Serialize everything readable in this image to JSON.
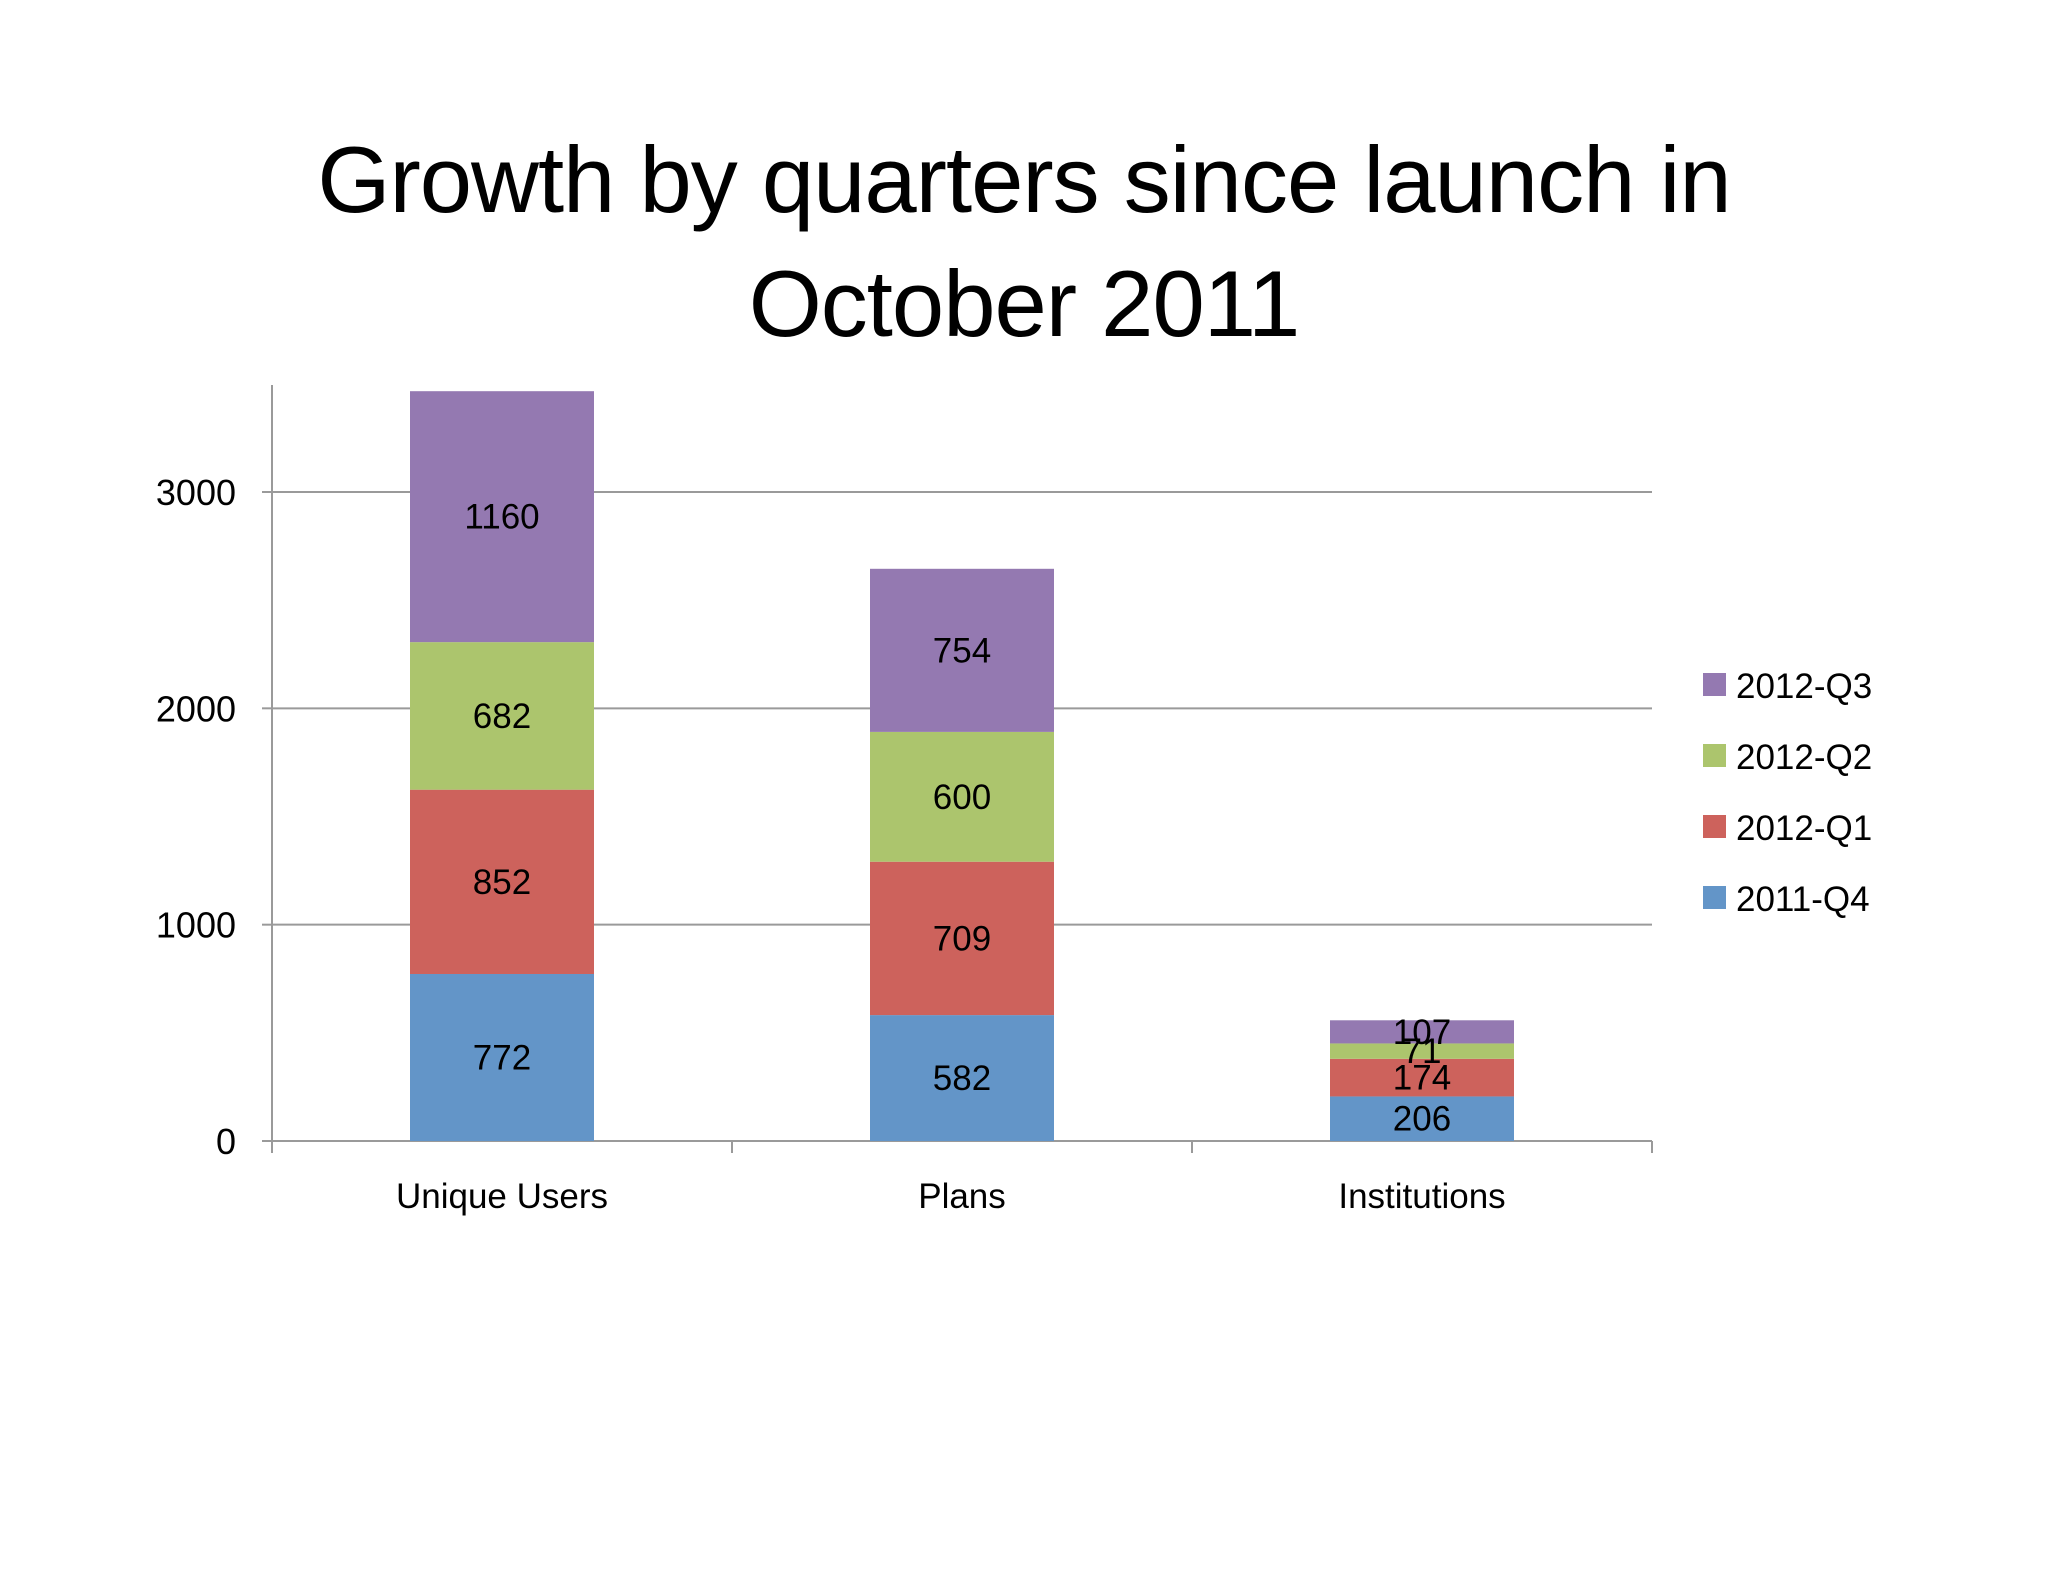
{
  "title": {
    "line1": "Growth by quarters since launch in",
    "line2": "October 2011"
  },
  "chart_data": {
    "type": "bar",
    "stacked": true,
    "title": "Growth by quarters since launch in October 2011",
    "xlabel": "",
    "ylabel": "",
    "categories": [
      "Unique Users",
      "Plans",
      "Institutions"
    ],
    "series": [
      {
        "name": "2011-Q4",
        "color": "#6395C8",
        "values": [
          772,
          582,
          206
        ]
      },
      {
        "name": "2012-Q1",
        "color": "#CD625C",
        "values": [
          852,
          709,
          174
        ]
      },
      {
        "name": "2012-Q2",
        "color": "#ACC56D",
        "values": [
          682,
          600,
          71
        ]
      },
      {
        "name": "2012-Q3",
        "color": "#9479B1",
        "values": [
          1160,
          754,
          107
        ]
      }
    ],
    "ylim": [
      0,
      3500
    ],
    "yticks": [
      0,
      1000,
      2000,
      3000
    ],
    "grid": true,
    "data_labels": true,
    "legend_position": "right",
    "legend_order": [
      "2012-Q3",
      "2012-Q2",
      "2012-Q1",
      "2011-Q4"
    ]
  },
  "colors": {
    "grid": "#9a9a9a",
    "axis": "#9a9a9a"
  }
}
